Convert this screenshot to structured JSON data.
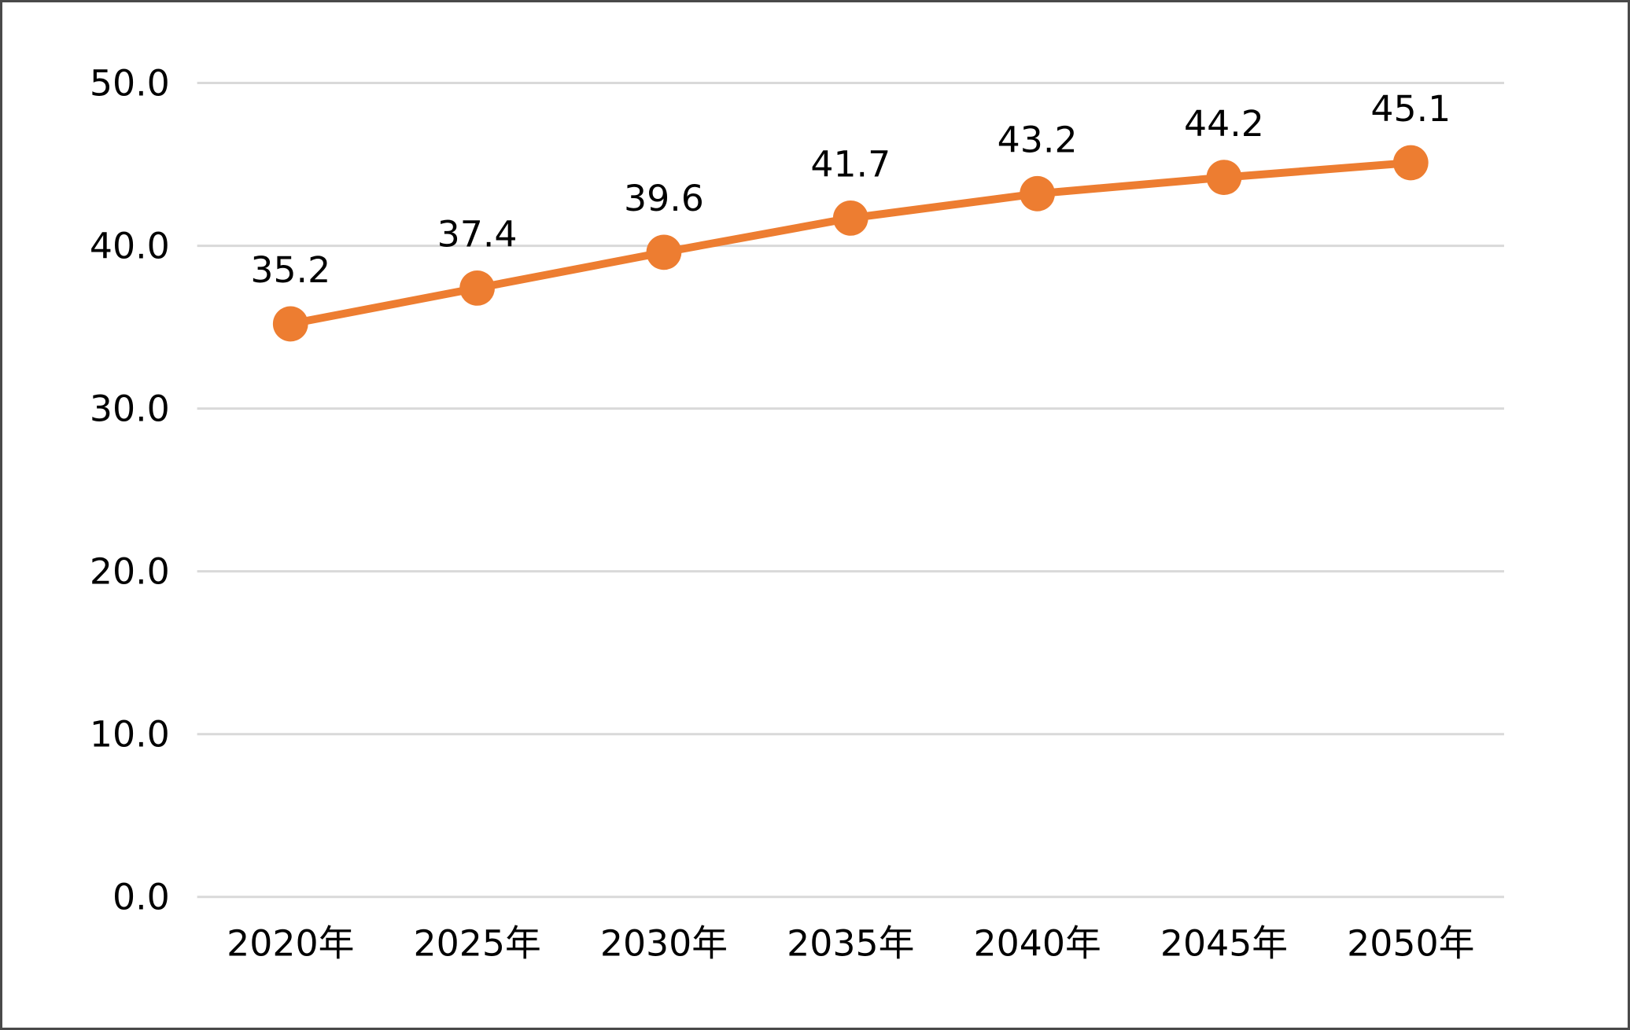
{
  "chart_data": {
    "type": "line",
    "title": "",
    "xlabel": "",
    "ylabel": "",
    "categories": [
      "2020年",
      "2025年",
      "2030年",
      "2035年",
      "2040年",
      "2045年",
      "2050年"
    ],
    "series": [
      {
        "name": "",
        "values": [
          35.2,
          37.4,
          39.6,
          41.7,
          43.2,
          44.2,
          45.1
        ],
        "data_labels": [
          "35.2",
          "37.4",
          "39.6",
          "41.7",
          "43.2",
          "44.2",
          "45.1"
        ]
      }
    ],
    "ylim": [
      0,
      50
    ],
    "yticks": [
      0,
      10,
      20,
      30,
      40,
      50
    ],
    "ytick_labels": [
      "0.0",
      "10.0",
      "20.0",
      "30.0",
      "40.0",
      "50.0"
    ],
    "grid": true,
    "legend": false,
    "marker_shape": "circle",
    "colors": {
      "line": "#ED7D31",
      "marker": "#ED7D31",
      "gridline": "#D9D9D9",
      "text": "#000000",
      "background": "#FFFFFF",
      "frame_border": "#4A4A4A"
    }
  }
}
